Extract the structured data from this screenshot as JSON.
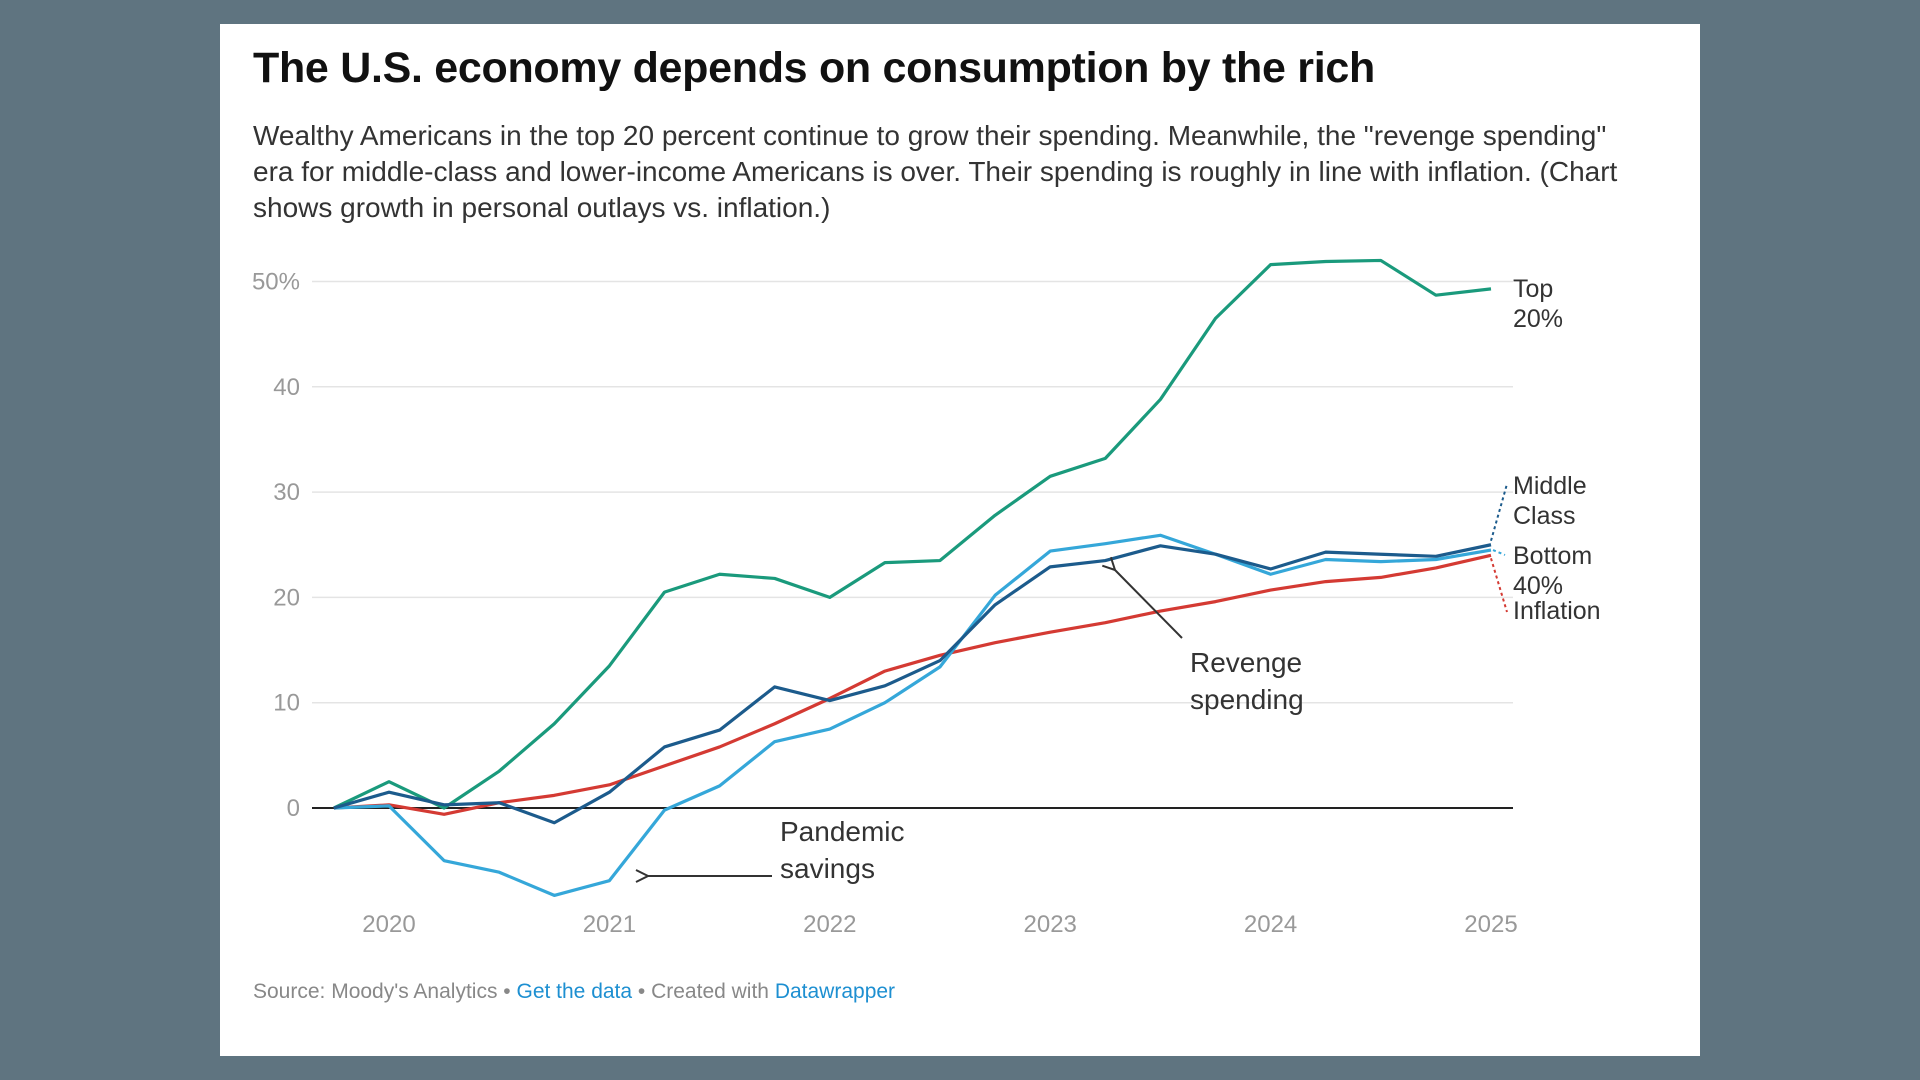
{
  "title": "The U.S. economy depends on consumption by the rich",
  "subtitle": "Wealthy Americans in the top 20 percent continue to grow their spending. Meanwhile, the \"revenge spending\" era for middle-class and lower-income Americans is over. Their spending is roughly in line with inflation. (Chart shows growth in personal outlays vs. inflation.)",
  "footer": {
    "source": "Source: Moody's Analytics",
    "sep1": " • ",
    "get_data": "Get the data",
    "sep2": " • Created with ",
    "datawrapper": "Datawrapper"
  },
  "chart_data": {
    "type": "line",
    "x_start": 2019.75,
    "x_step": 0.25,
    "xlim": [
      2019.75,
      2025
    ],
    "ylim": [
      -9,
      52
    ],
    "y_ticks": [
      0,
      10,
      20,
      30,
      40,
      50
    ],
    "y_tick_labels": [
      "0",
      "10",
      "20",
      "30",
      "40",
      "50%"
    ],
    "x_ticks": [
      2020,
      2021,
      2022,
      2023,
      2024,
      2025
    ],
    "x_tick_labels": [
      "2020",
      "2021",
      "2022",
      "2023",
      "2024",
      "2025"
    ],
    "grid": true,
    "series": [
      {
        "name": "Top 20%",
        "label_lines": [
          "Top",
          "20%"
        ],
        "color": "#1a9a7c",
        "values": [
          0,
          2.5,
          0,
          3.5,
          8,
          13.5,
          20.5,
          22.2,
          21.8,
          20,
          23.3,
          23.5,
          27.8,
          31.5,
          33.2,
          38.8,
          46.5,
          51.6,
          51.9,
          52,
          48.7,
          49.3
        ]
      },
      {
        "name": "Middle Class",
        "label_lines": [
          "Middle",
          "Class"
        ],
        "color": "#1c5b8c",
        "values": [
          0,
          1.5,
          0.3,
          0.5,
          -1.4,
          1.5,
          5.8,
          7.4,
          11.5,
          10.2,
          11.6,
          14,
          19.3,
          22.9,
          23.5,
          24.9,
          24.1,
          22.7,
          24.3,
          24.1,
          23.9,
          25
        ]
      },
      {
        "name": "Bottom 40%",
        "label_lines": [
          "Bottom",
          "40%"
        ],
        "color": "#35a7d9",
        "values": [
          0,
          0.2,
          -5,
          -6.1,
          -8.3,
          -6.9,
          -0.2,
          2.1,
          6.3,
          7.5,
          10,
          13.4,
          20.2,
          24.4,
          25.1,
          25.9,
          24.1,
          22.2,
          23.6,
          23.4,
          23.6,
          24.5
        ]
      },
      {
        "name": "Inflation",
        "label_lines": [
          "Inflation"
        ],
        "color": "#d43a33",
        "values": [
          0,
          0.3,
          -0.6,
          0.5,
          1.2,
          2.2,
          4,
          5.8,
          8,
          10.4,
          13,
          14.5,
          15.7,
          16.7,
          17.6,
          18.7,
          19.6,
          20.7,
          21.5,
          21.9,
          22.8,
          24
        ]
      }
    ],
    "annotations": [
      {
        "lines": [
          "Revenge",
          "spending"
        ]
      },
      {
        "lines": [
          "Pandemic",
          "savings"
        ]
      }
    ]
  }
}
